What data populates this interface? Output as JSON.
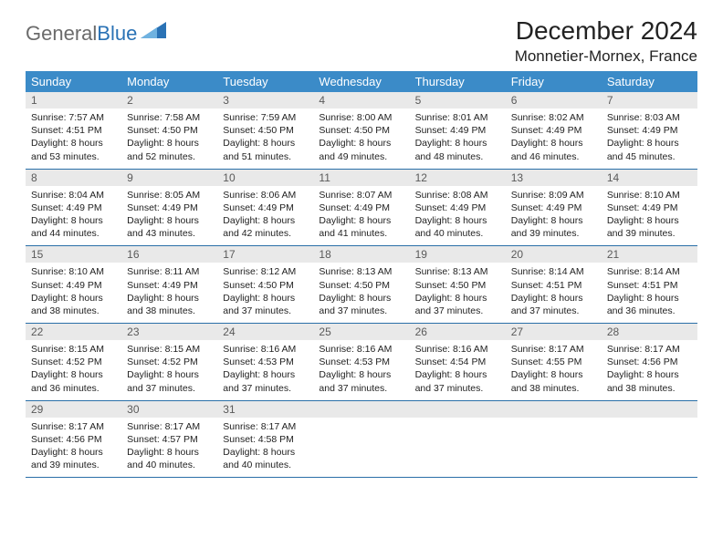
{
  "logo": {
    "part1": "General",
    "part2": "Blue"
  },
  "title": "December 2024",
  "location": "Monnetier-Mornex, France",
  "weekdays": [
    "Sunday",
    "Monday",
    "Tuesday",
    "Wednesday",
    "Thursday",
    "Friday",
    "Saturday"
  ],
  "days": [
    {
      "n": "1",
      "sr": "7:57 AM",
      "ss": "4:51 PM",
      "dl": "8 hours and 53 minutes."
    },
    {
      "n": "2",
      "sr": "7:58 AM",
      "ss": "4:50 PM",
      "dl": "8 hours and 52 minutes."
    },
    {
      "n": "3",
      "sr": "7:59 AM",
      "ss": "4:50 PM",
      "dl": "8 hours and 51 minutes."
    },
    {
      "n": "4",
      "sr": "8:00 AM",
      "ss": "4:50 PM",
      "dl": "8 hours and 49 minutes."
    },
    {
      "n": "5",
      "sr": "8:01 AM",
      "ss": "4:49 PM",
      "dl": "8 hours and 48 minutes."
    },
    {
      "n": "6",
      "sr": "8:02 AM",
      "ss": "4:49 PM",
      "dl": "8 hours and 46 minutes."
    },
    {
      "n": "7",
      "sr": "8:03 AM",
      "ss": "4:49 PM",
      "dl": "8 hours and 45 minutes."
    },
    {
      "n": "8",
      "sr": "8:04 AM",
      "ss": "4:49 PM",
      "dl": "8 hours and 44 minutes."
    },
    {
      "n": "9",
      "sr": "8:05 AM",
      "ss": "4:49 PM",
      "dl": "8 hours and 43 minutes."
    },
    {
      "n": "10",
      "sr": "8:06 AM",
      "ss": "4:49 PM",
      "dl": "8 hours and 42 minutes."
    },
    {
      "n": "11",
      "sr": "8:07 AM",
      "ss": "4:49 PM",
      "dl": "8 hours and 41 minutes."
    },
    {
      "n": "12",
      "sr": "8:08 AM",
      "ss": "4:49 PM",
      "dl": "8 hours and 40 minutes."
    },
    {
      "n": "13",
      "sr": "8:09 AM",
      "ss": "4:49 PM",
      "dl": "8 hours and 39 minutes."
    },
    {
      "n": "14",
      "sr": "8:10 AM",
      "ss": "4:49 PM",
      "dl": "8 hours and 39 minutes."
    },
    {
      "n": "15",
      "sr": "8:10 AM",
      "ss": "4:49 PM",
      "dl": "8 hours and 38 minutes."
    },
    {
      "n": "16",
      "sr": "8:11 AM",
      "ss": "4:49 PM",
      "dl": "8 hours and 38 minutes."
    },
    {
      "n": "17",
      "sr": "8:12 AM",
      "ss": "4:50 PM",
      "dl": "8 hours and 37 minutes."
    },
    {
      "n": "18",
      "sr": "8:13 AM",
      "ss": "4:50 PM",
      "dl": "8 hours and 37 minutes."
    },
    {
      "n": "19",
      "sr": "8:13 AM",
      "ss": "4:50 PM",
      "dl": "8 hours and 37 minutes."
    },
    {
      "n": "20",
      "sr": "8:14 AM",
      "ss": "4:51 PM",
      "dl": "8 hours and 37 minutes."
    },
    {
      "n": "21",
      "sr": "8:14 AM",
      "ss": "4:51 PM",
      "dl": "8 hours and 36 minutes."
    },
    {
      "n": "22",
      "sr": "8:15 AM",
      "ss": "4:52 PM",
      "dl": "8 hours and 36 minutes."
    },
    {
      "n": "23",
      "sr": "8:15 AM",
      "ss": "4:52 PM",
      "dl": "8 hours and 37 minutes."
    },
    {
      "n": "24",
      "sr": "8:16 AM",
      "ss": "4:53 PM",
      "dl": "8 hours and 37 minutes."
    },
    {
      "n": "25",
      "sr": "8:16 AM",
      "ss": "4:53 PM",
      "dl": "8 hours and 37 minutes."
    },
    {
      "n": "26",
      "sr": "8:16 AM",
      "ss": "4:54 PM",
      "dl": "8 hours and 37 minutes."
    },
    {
      "n": "27",
      "sr": "8:17 AM",
      "ss": "4:55 PM",
      "dl": "8 hours and 38 minutes."
    },
    {
      "n": "28",
      "sr": "8:17 AM",
      "ss": "4:56 PM",
      "dl": "8 hours and 38 minutes."
    },
    {
      "n": "29",
      "sr": "8:17 AM",
      "ss": "4:56 PM",
      "dl": "8 hours and 39 minutes."
    },
    {
      "n": "30",
      "sr": "8:17 AM",
      "ss": "4:57 PM",
      "dl": "8 hours and 40 minutes."
    },
    {
      "n": "31",
      "sr": "8:17 AM",
      "ss": "4:58 PM",
      "dl": "8 hours and 40 minutes."
    }
  ],
  "labels": {
    "sunrise": "Sunrise: ",
    "sunset": "Sunset: ",
    "daylight": "Daylight: "
  },
  "colors": {
    "header_bg": "#3b8bc8",
    "row_border": "#2a6fa8",
    "daynum_bg": "#e9e9e9",
    "logo_gray": "#6b6b6b",
    "logo_blue": "#2a72b5"
  },
  "layout": {
    "start_weekday": 0,
    "empty_trailing": 4
  }
}
